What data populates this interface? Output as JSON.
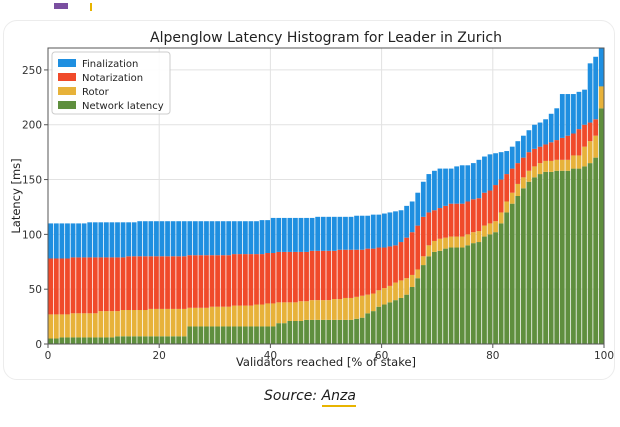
{
  "caption": {
    "prefix": "Source:",
    "link": "Anza"
  },
  "chart_data": {
    "type": "bar",
    "stacked": true,
    "title": "Alpenglow Latency Histogram for Leader in Zurich",
    "xlabel": "Validators reached [% of stake]",
    "ylabel": "Latency [ms]",
    "xlim": [
      0,
      100
    ],
    "ylim": [
      0,
      270
    ],
    "xticks": [
      0,
      20,
      40,
      60,
      80,
      100
    ],
    "yticks": [
      0,
      50,
      100,
      150,
      200,
      250
    ],
    "grid": true,
    "legend": "top-left",
    "series_order_bottom_to_top": [
      "Network latency",
      "Rotor",
      "Notarization",
      "Finalization"
    ],
    "series_colors": {
      "Finalization": "#1f8fe0",
      "Notarization": "#f04a2a",
      "Rotor": "#e7b23a",
      "Network latency": "#5f8f3e"
    },
    "segments_note": "cumulative top values per band",
    "x": [
      1,
      2,
      3,
      4,
      5,
      6,
      7,
      8,
      9,
      10,
      11,
      12,
      13,
      14,
      15,
      16,
      17,
      18,
      19,
      20,
      21,
      22,
      23,
      24,
      25,
      26,
      27,
      28,
      29,
      30,
      31,
      32,
      33,
      34,
      35,
      36,
      37,
      38,
      39,
      40,
      41,
      42,
      43,
      44,
      45,
      46,
      47,
      48,
      49,
      50,
      51,
      52,
      53,
      54,
      55,
      56,
      57,
      58,
      59,
      60,
      61,
      62,
      63,
      64,
      65,
      66,
      67,
      68,
      69,
      70,
      71,
      72,
      73,
      74,
      75,
      76,
      77,
      78,
      79,
      80,
      81,
      82,
      83,
      84,
      85,
      86,
      87,
      88,
      89,
      90,
      91,
      92,
      93,
      94,
      95,
      96,
      97,
      98,
      99,
      100
    ],
    "network_top": [
      5,
      5,
      6,
      6,
      6,
      6,
      6,
      6,
      6,
      6,
      6,
      6,
      7,
      7,
      7,
      7,
      7,
      7,
      7,
      7,
      7,
      7,
      7,
      7,
      7,
      16,
      16,
      16,
      16,
      16,
      16,
      16,
      16,
      16,
      16,
      16,
      16,
      16,
      16,
      16,
      16,
      19,
      19,
      21,
      21,
      21,
      22,
      22,
      22,
      22,
      22,
      22,
      22,
      22,
      22,
      23,
      24,
      28,
      30,
      34,
      36,
      38,
      40,
      42,
      45,
      52,
      60,
      72,
      80,
      84,
      85,
      87,
      88,
      88,
      88,
      90,
      92,
      93,
      98,
      100,
      102,
      110,
      120,
      128,
      135,
      142,
      148,
      152,
      155,
      157,
      157,
      158,
      158,
      158,
      160,
      160,
      162,
      165,
      170,
      215
    ],
    "rotor_top": [
      27,
      27,
      27,
      27,
      28,
      28,
      28,
      28,
      28,
      30,
      30,
      30,
      30,
      31,
      31,
      31,
      31,
      31,
      32,
      32,
      32,
      32,
      32,
      32,
      32,
      33,
      33,
      33,
      33,
      34,
      34,
      34,
      34,
      35,
      35,
      35,
      35,
      36,
      36,
      37,
      37,
      38,
      38,
      38,
      38,
      39,
      39,
      40,
      40,
      40,
      40,
      41,
      41,
      42,
      42,
      43,
      44,
      45,
      46,
      49,
      51,
      53,
      56,
      58,
      60,
      63,
      68,
      80,
      90,
      94,
      96,
      97,
      98,
      98,
      98,
      100,
      102,
      103,
      108,
      110,
      112,
      120,
      130,
      138,
      146,
      152,
      158,
      162,
      165,
      167,
      167,
      168,
      168,
      168,
      172,
      172,
      180,
      185,
      190,
      250
    ],
    "notar_top": [
      78,
      78,
      78,
      78,
      79,
      79,
      79,
      79,
      79,
      79,
      79,
      79,
      79,
      79,
      80,
      80,
      80,
      80,
      80,
      80,
      80,
      80,
      80,
      80,
      80,
      81,
      81,
      81,
      81,
      81,
      81,
      81,
      81,
      82,
      82,
      82,
      82,
      82,
      82,
      83,
      83,
      84,
      84,
      84,
      84,
      84,
      84,
      85,
      85,
      85,
      85,
      85,
      86,
      86,
      86,
      86,
      86,
      87,
      87,
      88,
      88,
      89,
      90,
      93,
      97,
      102,
      108,
      116,
      120,
      122,
      124,
      126,
      128,
      128,
      128,
      130,
      132,
      133,
      138,
      140,
      145,
      150,
      155,
      160,
      165,
      170,
      175,
      178,
      180,
      182,
      184,
      186,
      188,
      190,
      192,
      196,
      200,
      202,
      205,
      235
    ],
    "final_top": [
      110,
      110,
      110,
      110,
      110,
      110,
      110,
      111,
      111,
      111,
      111,
      111,
      111,
      111,
      111,
      111,
      112,
      112,
      112,
      112,
      112,
      112,
      112,
      112,
      112,
      112,
      112,
      112,
      112,
      112,
      112,
      112,
      112,
      112,
      112,
      112,
      112,
      112,
      113,
      113,
      115,
      115,
      115,
      115,
      115,
      115,
      115,
      115,
      116,
      116,
      116,
      116,
      116,
      116,
      116,
      117,
      117,
      117,
      118,
      118,
      119,
      120,
      121,
      122,
      126,
      130,
      138,
      148,
      155,
      158,
      160,
      160,
      160,
      162,
      163,
      163,
      165,
      168,
      171,
      173,
      174,
      175,
      176,
      180,
      185,
      190,
      195,
      200,
      202,
      205,
      210,
      215,
      228,
      228,
      228,
      230,
      232,
      256,
      262,
      270
    ]
  }
}
